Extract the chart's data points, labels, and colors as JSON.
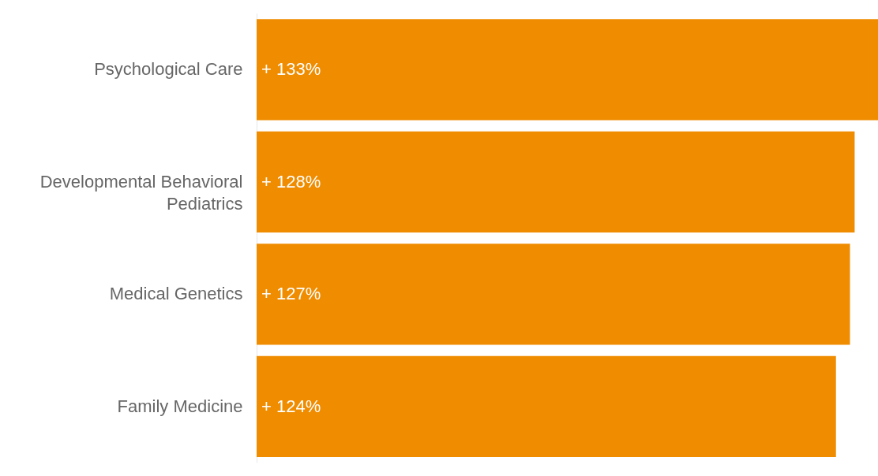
{
  "chart_data": {
    "type": "bar",
    "orientation": "horizontal",
    "categories": [
      "Psychological Care",
      "Developmental Behavioral Pediatrics",
      "Medical Genetics",
      "Family Medicine"
    ],
    "values": [
      133,
      128,
      127,
      124
    ],
    "value_labels": [
      "+ 133%",
      "+ 128%",
      "+ 127%",
      "+ 124%"
    ],
    "color": "#ef8c00",
    "xlim": [
      0,
      133
    ],
    "tick_labels": "y"
  }
}
